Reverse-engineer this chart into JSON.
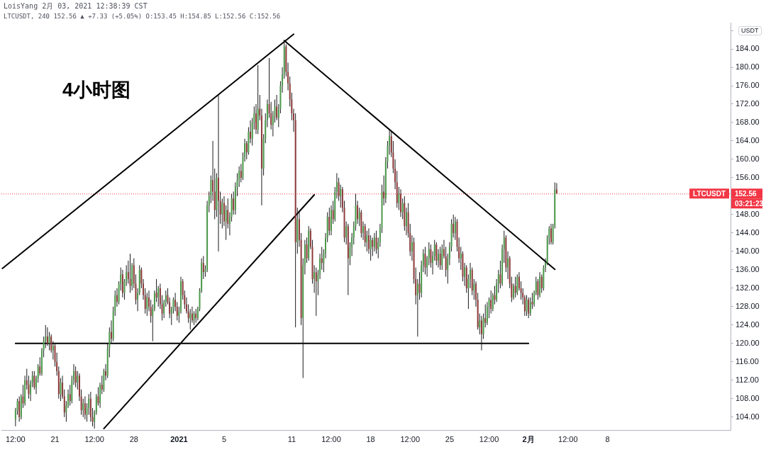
{
  "chart_data": {
    "type": "candlestick",
    "title": "4小时图",
    "subtitle": "LoisYang 2月 03, 2021 12:38:39 CST",
    "ylabel": "USDT",
    "annotations": [
      "LTCUSDT, 240 152.56 ▲ +7.33 (+5.05%) O:153.45 H:154.85 L:152.56 C:152.56",
      "152.56",
      "03:21:23"
    ],
    "x": [
      "2020-12-17T12:00",
      "2020-12-17T16:00",
      "2020-12-17T20:00",
      "2020-12-18T00:00",
      "2020-12-18T04:00",
      "2020-12-18T08:00",
      "2020-12-18T12:00",
      "2020-12-18T16:00",
      "2020-12-18T20:00",
      "2020-12-19T00:00",
      "2020-12-19T04:00",
      "2020-12-19T08:00",
      "2020-12-19T12:00",
      "2020-12-19T16:00",
      "2020-12-19T20:00",
      "2020-12-20T00:00",
      "2020-12-20T04:00",
      "2020-12-20T08:00",
      "2020-12-20T12:00",
      "2020-12-20T16:00",
      "2020-12-20T20:00",
      "2020-12-21T00:00",
      "2020-12-21T04:00",
      "2020-12-21T08:00",
      "2020-12-21T12:00",
      "2020-12-21T16:00",
      "2020-12-21T20:00",
      "2020-12-22T00:00",
      "2020-12-22T04:00",
      "2020-12-22T08:00",
      "2020-12-22T12:00",
      "2020-12-22T16:00",
      "2020-12-22T20:00",
      "2020-12-23T00:00",
      "2020-12-23T04:00",
      "2020-12-23T08:00",
      "2020-12-23T12:00",
      "2020-12-23T16:00",
      "2020-12-23T20:00",
      "2020-12-24T00:00",
      "2020-12-24T04:00",
      "2020-12-24T08:00",
      "2020-12-24T12:00",
      "2020-12-24T16:00",
      "2020-12-24T20:00",
      "2020-12-25T00:00",
      "2020-12-25T04:00",
      "2020-12-25T08:00",
      "2020-12-25T12:00",
      "2020-12-25T16:00",
      "2020-12-25T20:00",
      "2020-12-26T00:00",
      "2020-12-26T04:00",
      "2020-12-26T08:00",
      "2020-12-26T12:00",
      "2020-12-26T16:00",
      "2020-12-26T20:00",
      "2020-12-27T00:00",
      "2020-12-27T04:00",
      "2020-12-27T08:00",
      "2020-12-27T12:00",
      "2020-12-27T16:00",
      "2020-12-27T20:00",
      "2020-12-28T00:00",
      "2020-12-28T04:00",
      "2020-12-28T08:00",
      "2020-12-28T12:00",
      "2020-12-28T16:00",
      "2020-12-28T20:00",
      "2020-12-29T00:00",
      "2020-12-29T04:00",
      "2020-12-29T08:00",
      "2020-12-29T12:00",
      "2020-12-29T16:00",
      "2020-12-29T20:00",
      "2020-12-30T00:00",
      "2020-12-30T04:00",
      "2020-12-30T08:00",
      "2020-12-30T12:00",
      "2020-12-30T16:00",
      "2020-12-30T20:00",
      "2020-12-31T00:00",
      "2020-12-31T04:00",
      "2020-12-31T08:00",
      "2020-12-31T12:00",
      "2020-12-31T16:00",
      "2020-12-31T20:00",
      "2021-01-01T00:00",
      "2021-01-01T04:00",
      "2021-01-01T08:00",
      "2021-01-01T12:00",
      "2021-01-01T16:00",
      "2021-01-01T20:00",
      "2021-01-02T00:00",
      "2021-01-02T04:00",
      "2021-01-02T08:00",
      "2021-01-02T12:00",
      "2021-01-02T16:00",
      "2021-01-02T20:00",
      "2021-01-03T00:00",
      "2021-01-03T04:00",
      "2021-01-03T08:00",
      "2021-01-03T12:00",
      "2021-01-03T16:00",
      "2021-01-03T20:00",
      "2021-01-04T00:00",
      "2021-01-04T04:00",
      "2021-01-04T08:00",
      "2021-01-04T12:00",
      "2021-01-04T16:00",
      "2021-01-04T20:00",
      "2021-01-05T00:00",
      "2021-01-05T04:00",
      "2021-01-05T08:00",
      "2021-01-05T12:00",
      "2021-01-05T16:00",
      "2021-01-05T20:00",
      "2021-01-06T00:00",
      "2021-01-06T04:00",
      "2021-01-06T08:00",
      "2021-01-06T12:00",
      "2021-01-06T16:00",
      "2021-01-06T20:00",
      "2021-01-07T00:00",
      "2021-01-07T04:00",
      "2021-01-07T08:00",
      "2021-01-07T12:00",
      "2021-01-07T16:00",
      "2021-01-07T20:00",
      "2021-01-08T00:00",
      "2021-01-08T04:00",
      "2021-01-08T08:00",
      "2021-01-08T12:00",
      "2021-01-08T16:00",
      "2021-01-08T20:00",
      "2021-01-09T00:00",
      "2021-01-09T04:00",
      "2021-01-09T08:00",
      "2021-01-09T12:00",
      "2021-01-09T16:00",
      "2021-01-09T20:00",
      "2021-01-10T00:00",
      "2021-01-10T04:00",
      "2021-01-10T08:00",
      "2021-01-10T12:00",
      "2021-01-10T16:00",
      "2021-01-10T20:00",
      "2021-01-11T00:00",
      "2021-01-11T04:00",
      "2021-01-11T08:00",
      "2021-01-11T12:00",
      "2021-01-11T16:00",
      "2021-01-11T20:00",
      "2021-01-12T00:00",
      "2021-01-12T04:00",
      "2021-01-12T08:00",
      "2021-01-12T12:00",
      "2021-01-12T16:00",
      "2021-01-12T20:00",
      "2021-01-13T00:00",
      "2021-01-13T04:00",
      "2021-01-13T08:00",
      "2021-01-13T12:00",
      "2021-01-13T16:00",
      "2021-01-13T20:00",
      "2021-01-14T00:00",
      "2021-01-14T04:00",
      "2021-01-14T08:00",
      "2021-01-14T12:00",
      "2021-01-14T16:00",
      "2021-01-14T20:00",
      "2021-01-15T00:00",
      "2021-01-15T04:00",
      "2021-01-15T08:00",
      "2021-01-15T12:00",
      "2021-01-15T16:00",
      "2021-01-15T20:00",
      "2021-01-16T00:00",
      "2021-01-16T04:00",
      "2021-01-16T08:00",
      "2021-01-16T12:00",
      "2021-01-16T16:00",
      "2021-01-16T20:00",
      "2021-01-17T00:00",
      "2021-01-17T04:00",
      "2021-01-17T08:00",
      "2021-01-17T12:00",
      "2021-01-17T16:00",
      "2021-01-17T20:00",
      "2021-01-18T00:00",
      "2021-01-18T04:00",
      "2021-01-18T08:00",
      "2021-01-18T12:00",
      "2021-01-18T16:00",
      "2021-01-18T20:00",
      "2021-01-19T00:00",
      "2021-01-19T04:00",
      "2021-01-19T08:00",
      "2021-01-19T12:00",
      "2021-01-19T16:00",
      "2021-01-19T20:00",
      "2021-01-20T00:00",
      "2021-01-20T04:00",
      "2021-01-20T08:00",
      "2021-01-20T12:00",
      "2021-01-20T16:00",
      "2021-01-20T20:00",
      "2021-01-21T00:00",
      "2021-01-21T04:00",
      "2021-01-21T08:00",
      "2021-01-21T12:00",
      "2021-01-21T16:00",
      "2021-01-21T20:00",
      "2021-01-22T00:00",
      "2021-01-22T04:00",
      "2021-01-22T08:00",
      "2021-01-22T12:00",
      "2021-01-22T16:00",
      "2021-01-22T20:00",
      "2021-01-23T00:00",
      "2021-01-23T04:00",
      "2021-01-23T08:00",
      "2021-01-23T12:00",
      "2021-01-23T16:00",
      "2021-01-23T20:00",
      "2021-01-24T00:00",
      "2021-01-24T04:00",
      "2021-01-24T08:00",
      "2021-01-24T12:00",
      "2021-01-24T16:00",
      "2021-01-24T20:00",
      "2021-01-25T00:00",
      "2021-01-25T04:00",
      "2021-01-25T08:00",
      "2021-01-25T12:00",
      "2021-01-25T16:00",
      "2021-01-25T20:00",
      "2021-01-26T00:00",
      "2021-01-26T04:00",
      "2021-01-26T08:00",
      "2021-01-26T12:00",
      "2021-01-26T16:00",
      "2021-01-26T20:00",
      "2021-01-27T00:00",
      "2021-01-27T04:00",
      "2021-01-27T08:00",
      "2021-01-27T12:00",
      "2021-01-27T16:00",
      "2021-01-27T20:00",
      "2021-01-28T00:00",
      "2021-01-28T04:00",
      "2021-01-28T08:00",
      "2021-01-28T12:00",
      "2021-01-28T16:00",
      "2021-01-28T20:00",
      "2021-01-29T00:00",
      "2021-01-29T04:00",
      "2021-01-29T08:00",
      "2021-01-29T12:00",
      "2021-01-29T16:00",
      "2021-01-29T20:00",
      "2021-01-30T00:00",
      "2021-01-30T04:00",
      "2021-01-30T08:00",
      "2021-01-30T12:00",
      "2021-01-30T16:00",
      "2021-01-30T20:00",
      "2021-01-31T00:00",
      "2021-01-31T04:00",
      "2021-01-31T08:00",
      "2021-01-31T12:00",
      "2021-01-31T16:00",
      "2021-01-31T20:00",
      "2021-02-01T00:00",
      "2021-02-01T04:00",
      "2021-02-01T08:00",
      "2021-02-01T12:00",
      "2021-02-01T16:00",
      "2021-02-01T20:00",
      "2021-02-02T00:00",
      "2021-02-02T04:00",
      "2021-02-02T08:00",
      "2021-02-02T12:00",
      "2021-02-02T16:00",
      "2021-02-02T20:00",
      "2021-02-03T00:00",
      "2021-02-03T04:00",
      "2021-02-03T08:00",
      "2021-02-03T12:00"
    ],
    "ohlc": [
      [
        103.5,
        106,
        102,
        105.5
      ],
      [
        105.5,
        108,
        104.5,
        107.5
      ],
      [
        107.5,
        108.5,
        103,
        104
      ],
      [
        104,
        109,
        103.5,
        108.5
      ],
      [
        108.5,
        111,
        106,
        107
      ],
      [
        107,
        113,
        106.5,
        112
      ],
      [
        112,
        114.5,
        110,
        111
      ],
      [
        111,
        113,
        108,
        109
      ],
      [
        109,
        112,
        107.5,
        111.5
      ],
      [
        111.5,
        114,
        110.5,
        113
      ],
      [
        113,
        114,
        110,
        110.5
      ],
      [
        110.5,
        113,
        109,
        112.5
      ],
      [
        112.5,
        115.5,
        111.5,
        115
      ],
      [
        115,
        117,
        113,
        113.5
      ],
      [
        113.5,
        119,
        113,
        118.5
      ],
      [
        118.5,
        121.5,
        117,
        120.5
      ],
      [
        120.5,
        124,
        119,
        121.5
      ],
      [
        121.5,
        123.5,
        119.5,
        120
      ],
      [
        120,
        122.5,
        118.5,
        121.5
      ],
      [
        121.5,
        122,
        118,
        118.5
      ],
      [
        118.5,
        120.5,
        116.5,
        119.5
      ],
      [
        119.5,
        120,
        115,
        116
      ],
      [
        116,
        118,
        113,
        114
      ],
      [
        114,
        115,
        108,
        109
      ],
      [
        109,
        112.5,
        107.5,
        111.5
      ],
      [
        111.5,
        113,
        108,
        108.5
      ],
      [
        108.5,
        110,
        104,
        105
      ],
      [
        105,
        107.5,
        103,
        106.5
      ],
      [
        106.5,
        110,
        106,
        109
      ],
      [
        109,
        111,
        106.5,
        107.5
      ],
      [
        107.5,
        113,
        107,
        112
      ],
      [
        112,
        115.5,
        111,
        114
      ],
      [
        114,
        115,
        110.5,
        111.5
      ],
      [
        111.5,
        114,
        110,
        113
      ],
      [
        113,
        113.5,
        107.5,
        108.5
      ],
      [
        108.5,
        110,
        104.5,
        105.5
      ],
      [
        105.5,
        108,
        104,
        107
      ],
      [
        107,
        108.5,
        103.5,
        104.5
      ],
      [
        104.5,
        107,
        103,
        106
      ],
      [
        106,
        109,
        104.5,
        108
      ],
      [
        108,
        109.5,
        103,
        104
      ],
      [
        104,
        106,
        102,
        103
      ],
      [
        103,
        105.5,
        101.5,
        105
      ],
      [
        105,
        109,
        104.5,
        108.5
      ],
      [
        108.5,
        110.5,
        106.5,
        107
      ],
      [
        107,
        111.5,
        106,
        111
      ],
      [
        111,
        113,
        109,
        110
      ],
      [
        110,
        114.5,
        109.5,
        114
      ],
      [
        114,
        115.5,
        112,
        113
      ],
      [
        113,
        120,
        112.5,
        119
      ],
      [
        119,
        123.5,
        117,
        122.5
      ],
      [
        122.5,
        125,
        120,
        121
      ],
      [
        121,
        128,
        120.5,
        127
      ],
      [
        127,
        131.5,
        126,
        130.5
      ],
      [
        130.5,
        132,
        128,
        129
      ],
      [
        129,
        133.5,
        128.5,
        133
      ],
      [
        133,
        136.5,
        131.5,
        135
      ],
      [
        135,
        136,
        130,
        131
      ],
      [
        131,
        134,
        129.5,
        133.5
      ],
      [
        133.5,
        137,
        132.5,
        135.5
      ],
      [
        135.5,
        138,
        133,
        134
      ],
      [
        134,
        139.5,
        131,
        132.5
      ],
      [
        132.5,
        137.5,
        131.5,
        137
      ],
      [
        137,
        138.5,
        132,
        133
      ],
      [
        133,
        135,
        128.5,
        129.5
      ],
      [
        129.5,
        132,
        127,
        131
      ],
      [
        131,
        137,
        130.5,
        136
      ],
      [
        136,
        136.5,
        132,
        133
      ],
      [
        133,
        134,
        129.5,
        130.5
      ],
      [
        130.5,
        132,
        126.5,
        127.5
      ],
      [
        127.5,
        131,
        126,
        130
      ],
      [
        130,
        131.5,
        127,
        128
      ],
      [
        128,
        129.5,
        124.5,
        126
      ],
      [
        126,
        128.5,
        120.5,
        127.5
      ],
      [
        127.5,
        131.5,
        127,
        131
      ],
      [
        131,
        134,
        129,
        130
      ],
      [
        130,
        132.5,
        128,
        132
      ],
      [
        132,
        133,
        127.5,
        128.5
      ],
      [
        128.5,
        130.5,
        125,
        126.5
      ],
      [
        126.5,
        129.5,
        125.5,
        129
      ],
      [
        129,
        131.5,
        128,
        130.5
      ],
      [
        130.5,
        132,
        128.5,
        129
      ],
      [
        129,
        130,
        125.5,
        126.5
      ],
      [
        126.5,
        128,
        124,
        127.5
      ],
      [
        127.5,
        130,
        126.5,
        129.5
      ],
      [
        129.5,
        131,
        127,
        128
      ],
      [
        128,
        129,
        125,
        126
      ],
      [
        126,
        128,
        124.5,
        127
      ],
      [
        127,
        134.5,
        126.5,
        133.5
      ],
      [
        133.5,
        134,
        129.5,
        130.5
      ],
      [
        130.5,
        131.5,
        127.5,
        128.5
      ],
      [
        128.5,
        130,
        126.5,
        127
      ],
      [
        127,
        128.5,
        124.5,
        125.5
      ],
      [
        125.5,
        127.5,
        123,
        126.5
      ],
      [
        126.5,
        128,
        124.5,
        125
      ],
      [
        125,
        127,
        124,
        126.5
      ],
      [
        126.5,
        127.5,
        124.5,
        125.5
      ],
      [
        125.5,
        128,
        125,
        127.5
      ],
      [
        127.5,
        132,
        127,
        131.5
      ],
      [
        131.5,
        138.5,
        131,
        137.5
      ],
      [
        137.5,
        139,
        134,
        135.5
      ],
      [
        135.5,
        137,
        134.5,
        136
      ],
      [
        136,
        151,
        135.5,
        150
      ],
      [
        150,
        153,
        148.5,
        152
      ],
      [
        152,
        156.5,
        150.5,
        155.5
      ],
      [
        155.5,
        164,
        151,
        153
      ],
      [
        153,
        158,
        147,
        149
      ],
      [
        149,
        157,
        147.5,
        156
      ],
      [
        156,
        174,
        140,
        151
      ],
      [
        151,
        153,
        146,
        148
      ],
      [
        148,
        151.5,
        145,
        150.5
      ],
      [
        150.5,
        152,
        145.5,
        146.5
      ],
      [
        146.5,
        150,
        142.5,
        149
      ],
      [
        149,
        151.5,
        145,
        146
      ],
      [
        146,
        148.5,
        143.5,
        147.5
      ],
      [
        147.5,
        152.5,
        146.5,
        151.5
      ],
      [
        151.5,
        153,
        148,
        149
      ],
      [
        149,
        155,
        148,
        154
      ],
      [
        154,
        157,
        152,
        155.5
      ],
      [
        155.5,
        158.5,
        154,
        157.5
      ],
      [
        157.5,
        159,
        155,
        156
      ],
      [
        156,
        161.5,
        155.5,
        160.5
      ],
      [
        160.5,
        164.5,
        159.5,
        163.5
      ],
      [
        163.5,
        164,
        160,
        161.5
      ],
      [
        161.5,
        167,
        161,
        166
      ],
      [
        166,
        168.5,
        163.5,
        164.5
      ],
      [
        164.5,
        169,
        163,
        168
      ],
      [
        168,
        171.5,
        166.5,
        170
      ],
      [
        170,
        172,
        165.5,
        166.5
      ],
      [
        166.5,
        180.5,
        165.5,
        171
      ],
      [
        171,
        174,
        168.5,
        169.5
      ],
      [
        169.5,
        171,
        150,
        158
      ],
      [
        158,
        165.5,
        156.5,
        164.5
      ],
      [
        164.5,
        170,
        163.5,
        168.5
      ],
      [
        168.5,
        173,
        167,
        172
      ],
      [
        172,
        182,
        169,
        170
      ],
      [
        170,
        172.5,
        166.5,
        167.5
      ],
      [
        167.5,
        170.5,
        165,
        169.5
      ],
      [
        169.5,
        173,
        168,
        171.5
      ],
      [
        171.5,
        174,
        168.5,
        169
      ],
      [
        169,
        172,
        167,
        171
      ],
      [
        171,
        177,
        170,
        176
      ],
      [
        176,
        180,
        174.5,
        178.5
      ],
      [
        178.5,
        185.5,
        177.5,
        184.5
      ],
      [
        184.5,
        185,
        178,
        179
      ],
      [
        179,
        181,
        175,
        176.5
      ],
      [
        176.5,
        178,
        171.5,
        173
      ],
      [
        173,
        174.5,
        168.5,
        170
      ],
      [
        170,
        171,
        166,
        168.5
      ],
      [
        168.5,
        170,
        123.5,
        142
      ],
      [
        142,
        149.5,
        139.5,
        147
      ],
      [
        147,
        148.5,
        141,
        142.5
      ],
      [
        142.5,
        144,
        124,
        125.5
      ],
      [
        125.5,
        138.5,
        112.5,
        137
      ],
      [
        137,
        142.5,
        135,
        141.5
      ],
      [
        141.5,
        143,
        137.5,
        138.5
      ],
      [
        138.5,
        145.5,
        138,
        144.5
      ],
      [
        144.5,
        145,
        140.5,
        141
      ],
      [
        141,
        142.5,
        133,
        134
      ],
      [
        134,
        137,
        131,
        135.5
      ],
      [
        135.5,
        136.5,
        126,
        133.5
      ],
      [
        133.5,
        136,
        130.5,
        135
      ],
      [
        135,
        139.5,
        134,
        138.5
      ],
      [
        138.5,
        141,
        136,
        137.5
      ],
      [
        137.5,
        140.5,
        135.5,
        139.5
      ],
      [
        139.5,
        144,
        138.5,
        143
      ],
      [
        143,
        148.5,
        142,
        147.5
      ],
      [
        147.5,
        149.5,
        143.5,
        144.5
      ],
      [
        144.5,
        150,
        143.5,
        149
      ],
      [
        149,
        151,
        146,
        147
      ],
      [
        147,
        154,
        146.5,
        153
      ],
      [
        153,
        157,
        151.5,
        155
      ],
      [
        155,
        156,
        151,
        152
      ],
      [
        152,
        154.5,
        149.5,
        153.5
      ],
      [
        153.5,
        154,
        148.5,
        149.5
      ],
      [
        149.5,
        151,
        142,
        143
      ],
      [
        143,
        146.5,
        141.5,
        145.5
      ],
      [
        145.5,
        146,
        130.5,
        138.5
      ],
      [
        138.5,
        142,
        137,
        141
      ],
      [
        141,
        144,
        139,
        143
      ],
      [
        143,
        146.5,
        141.5,
        145.5
      ],
      [
        145.5,
        152.5,
        144.5,
        150
      ],
      [
        150,
        151,
        146,
        147
      ],
      [
        147,
        149.5,
        145.5,
        148.5
      ],
      [
        148.5,
        149,
        143,
        144
      ],
      [
        144,
        146.5,
        142.5,
        145.5
      ],
      [
        145.5,
        146,
        141,
        142
      ],
      [
        142,
        144.5,
        140,
        143.5
      ],
      [
        143.5,
        145,
        139.5,
        140.5
      ],
      [
        140.5,
        143.5,
        138,
        142.5
      ],
      [
        142.5,
        143,
        139,
        141
      ],
      [
        141,
        144,
        140,
        143
      ],
      [
        143,
        144.5,
        139.5,
        140.5
      ],
      [
        140.5,
        143,
        138.5,
        142
      ],
      [
        142,
        146,
        141,
        145
      ],
      [
        145,
        154.5,
        144,
        153
      ],
      [
        153,
        156.5,
        150,
        151.5
      ],
      [
        151.5,
        160.5,
        150.5,
        159.5
      ],
      [
        159.5,
        164,
        158,
        163
      ],
      [
        163,
        166.5,
        161,
        165
      ],
      [
        165,
        166,
        160.5,
        161.5
      ],
      [
        161.5,
        164,
        157,
        158
      ],
      [
        158,
        160,
        153.5,
        155
      ],
      [
        155,
        157.5,
        149.5,
        150.5
      ],
      [
        150.5,
        154,
        149,
        152.5
      ],
      [
        152.5,
        153.5,
        147.5,
        148.5
      ],
      [
        148.5,
        151.5,
        147,
        150.5
      ],
      [
        150.5,
        152,
        144.5,
        145.5
      ],
      [
        145.5,
        149.5,
        143.5,
        148.5
      ],
      [
        148.5,
        150.5,
        143,
        144
      ],
      [
        144,
        146,
        139,
        140
      ],
      [
        140,
        143.5,
        138,
        142
      ],
      [
        142,
        143,
        133,
        134
      ],
      [
        134,
        136.5,
        128.5,
        130.5
      ],
      [
        130.5,
        134,
        121.5,
        133
      ],
      [
        133,
        135.5,
        129.5,
        131
      ],
      [
        131,
        138,
        130,
        137
      ],
      [
        137,
        140.5,
        135.5,
        139.5
      ],
      [
        139.5,
        141,
        135,
        136.5
      ],
      [
        136.5,
        139,
        134.5,
        138.5
      ],
      [
        138.5,
        142,
        137,
        140.5
      ],
      [
        140.5,
        141.5,
        136.5,
        137.5
      ],
      [
        137.5,
        140,
        135,
        139
      ],
      [
        139,
        142.5,
        138,
        141.5
      ],
      [
        141.5,
        142,
        137,
        138
      ],
      [
        138,
        140.5,
        136.5,
        139.5
      ],
      [
        139.5,
        141,
        136,
        137
      ],
      [
        137,
        141.5,
        136,
        140.5
      ],
      [
        140.5,
        142.5,
        138.5,
        139
      ],
      [
        139,
        141,
        134.5,
        136
      ],
      [
        136,
        139.5,
        133,
        138.5
      ],
      [
        138.5,
        142,
        137,
        141
      ],
      [
        141,
        147,
        140,
        146
      ],
      [
        146,
        148,
        143,
        144
      ],
      [
        144,
        147.5,
        142.5,
        146.5
      ],
      [
        146.5,
        147,
        140,
        141
      ],
      [
        141,
        143,
        137.5,
        138.5
      ],
      [
        138.5,
        141,
        136,
        139.5
      ],
      [
        139.5,
        140,
        133.5,
        134.5
      ],
      [
        134.5,
        137.5,
        132.5,
        136.5
      ],
      [
        136.5,
        137,
        131,
        132
      ],
      [
        132,
        135,
        127.5,
        134
      ],
      [
        134,
        137.5,
        132,
        136
      ],
      [
        136,
        136.5,
        130.5,
        131.5
      ],
      [
        131.5,
        134,
        129.5,
        133
      ],
      [
        133,
        133.5,
        128,
        129.5
      ],
      [
        129.5,
        131,
        123,
        123.5
      ],
      [
        123.5,
        126.5,
        122,
        125
      ],
      [
        125,
        126,
        118.5,
        122
      ],
      [
        122,
        126.5,
        121,
        125.5
      ],
      [
        125.5,
        128.5,
        123.5,
        124.5
      ],
      [
        124.5,
        129,
        124,
        128
      ],
      [
        128,
        130,
        125.5,
        129.5
      ],
      [
        129.5,
        131.5,
        126.5,
        127.5
      ],
      [
        127.5,
        131,
        127,
        130.5
      ],
      [
        130.5,
        132.5,
        128.5,
        129.5
      ],
      [
        129.5,
        134,
        129,
        133
      ],
      [
        133,
        136,
        131,
        135
      ],
      [
        135,
        138,
        132,
        133
      ],
      [
        133,
        141.5,
        132.5,
        140.5
      ],
      [
        140.5,
        144.5,
        137.5,
        143
      ],
      [
        143,
        143.5,
        135.5,
        136.5
      ],
      [
        136.5,
        140,
        134,
        138.5
      ],
      [
        138.5,
        139,
        132,
        133
      ],
      [
        133,
        134.5,
        129,
        130
      ],
      [
        130,
        133,
        129.5,
        132.5
      ],
      [
        132.5,
        134.5,
        130,
        131
      ],
      [
        131,
        135,
        130.5,
        134.5
      ],
      [
        134.5,
        135.5,
        131.5,
        132
      ],
      [
        132,
        133.5,
        129.5,
        131
      ],
      [
        131,
        132,
        128.5,
        130
      ],
      [
        130,
        130.5,
        126,
        127
      ],
      [
        127,
        130.5,
        126,
        129.5
      ],
      [
        129.5,
        130,
        125.5,
        126.5
      ],
      [
        126.5,
        130,
        126,
        129
      ],
      [
        129,
        131,
        127.5,
        128.5
      ],
      [
        128.5,
        131.5,
        128,
        131
      ],
      [
        131,
        134.5,
        130.5,
        133.5
      ],
      [
        133.5,
        134,
        129.5,
        130.5
      ],
      [
        130.5,
        135.5,
        130,
        134.5
      ],
      [
        134.5,
        135,
        131,
        132
      ],
      [
        132,
        137,
        131.5,
        136.5
      ],
      [
        136.5,
        138.5,
        135.5,
        137.5
      ],
      [
        137.5,
        143.5,
        137,
        143
      ],
      [
        143,
        145.5,
        141.5,
        145
      ],
      [
        145,
        146,
        141.5,
        142
      ],
      [
        142,
        146,
        141.5,
        145.5
      ],
      [
        145.5,
        155,
        145,
        153.45
      ],
      [
        153.45,
        154.85,
        152.56,
        152.56
      ]
    ],
    "colors": [
      "#4c9a4c",
      "#4c9a4c",
      "#8e3a3a",
      "#4c9a4c",
      "#8e3a3a",
      "#4c9a4c",
      "#8e3a3a",
      "#8e3a3a",
      "#4c9a4c",
      "#4c9a4c",
      "#8e3a3a",
      "#4c9a4c",
      "#4c9a4c",
      "#8e3a3a",
      "#4c9a4c",
      "#4c9a4c",
      "#4c9a4c",
      "#8e3a3a",
      "#4c9a4c",
      "#8e3a3a",
      "#4c9a4c",
      "#8e3a3a",
      "#8e3a3a",
      "#8e3a3a",
      "#4c9a4c",
      "#8e3a3a",
      "#8e3a3a",
      "#4c9a4c",
      "#4c9a4c",
      "#8e3a3a",
      "#4c9a4c",
      "#4c9a4c",
      "#8e3a3a",
      "#4c9a4c",
      "#8e3a3a",
      "#8e3a3a",
      "#4c9a4c",
      "#8e3a3a",
      "#4c9a4c",
      "#4c9a4c",
      "#8e3a3a",
      "#8e3a3a",
      "#4c9a4c",
      "#4c9a4c",
      "#8e3a3a",
      "#4c9a4c",
      "#8e3a3a",
      "#4c9a4c",
      "#8e3a3a",
      "#4c9a4c",
      "#4c9a4c",
      "#8e3a3a",
      "#4c9a4c",
      "#4c9a4c",
      "#8e3a3a",
      "#4c9a4c",
      "#4c9a4c",
      "#8e3a3a",
      "#4c9a4c",
      "#4c9a4c",
      "#8e3a3a",
      "#8e3a3a",
      "#4c9a4c",
      "#8e3a3a",
      "#8e3a3a",
      "#4c9a4c",
      "#4c9a4c",
      "#8e3a3a",
      "#8e3a3a",
      "#8e3a3a",
      "#4c9a4c",
      "#8e3a3a",
      "#8e3a3a",
      "#4c9a4c",
      "#4c9a4c",
      "#8e3a3a",
      "#4c9a4c",
      "#8e3a3a",
      "#8e3a3a",
      "#4c9a4c",
      "#4c9a4c",
      "#8e3a3a",
      "#8e3a3a",
      "#4c9a4c",
      "#4c9a4c",
      "#8e3a3a",
      "#8e3a3a",
      "#4c9a4c",
      "#4c9a4c",
      "#8e3a3a",
      "#8e3a3a",
      "#8e3a3a",
      "#8e3a3a",
      "#4c9a4c",
      "#8e3a3a",
      "#4c9a4c",
      "#8e3a3a",
      "#4c9a4c",
      "#4c9a4c",
      "#4c9a4c",
      "#8e3a3a",
      "#4c9a4c",
      "#4c9a4c",
      "#4c9a4c",
      "#4c9a4c",
      "#8e3a3a",
      "#8e3a3a",
      "#4c9a4c",
      "#8e3a3a",
      "#8e3a3a",
      "#4c9a4c",
      "#8e3a3a",
      "#4c9a4c",
      "#8e3a3a",
      "#4c9a4c",
      "#4c9a4c",
      "#8e3a3a",
      "#4c9a4c",
      "#4c9a4c",
      "#4c9a4c",
      "#8e3a3a",
      "#4c9a4c",
      "#4c9a4c",
      "#8e3a3a",
      "#4c9a4c",
      "#8e3a3a",
      "#4c9a4c",
      "#4c9a4c",
      "#8e3a3a",
      "#4c9a4c",
      "#8e3a3a",
      "#8e3a3a",
      "#4c9a4c",
      "#4c9a4c",
      "#4c9a4c",
      "#8e3a3a",
      "#8e3a3a",
      "#4c9a4c",
      "#4c9a4c",
      "#8e3a3a",
      "#4c9a4c",
      "#4c9a4c",
      "#4c9a4c",
      "#4c9a4c",
      "#8e3a3a",
      "#8e3a3a",
      "#8e3a3a",
      "#8e3a3a",
      "#8e3a3a",
      "#8e3a3a",
      "#4c9a4c",
      "#8e3a3a",
      "#8e3a3a",
      "#4c9a4c",
      "#4c9a4c",
      "#8e3a3a",
      "#4c9a4c",
      "#8e3a3a",
      "#8e3a3a",
      "#4c9a4c",
      "#8e3a3a",
      "#4c9a4c",
      "#4c9a4c",
      "#8e3a3a",
      "#4c9a4c",
      "#4c9a4c",
      "#4c9a4c",
      "#8e3a3a",
      "#4c9a4c",
      "#8e3a3a",
      "#4c9a4c",
      "#4c9a4c",
      "#8e3a3a",
      "#4c9a4c",
      "#8e3a3a",
      "#8e3a3a",
      "#4c9a4c",
      "#8e3a3a",
      "#4c9a4c",
      "#4c9a4c",
      "#4c9a4c",
      "#4c9a4c",
      "#8e3a3a",
      "#4c9a4c",
      "#8e3a3a",
      "#4c9a4c",
      "#8e3a3a",
      "#4c9a4c",
      "#8e3a3a",
      "#4c9a4c",
      "#8e3a3a",
      "#4c9a4c",
      "#8e3a3a",
      "#4c9a4c",
      "#4c9a4c",
      "#4c9a4c",
      "#8e3a3a",
      "#4c9a4c",
      "#4c9a4c",
      "#4c9a4c",
      "#8e3a3a",
      "#8e3a3a",
      "#8e3a3a",
      "#8e3a3a",
      "#4c9a4c",
      "#8e3a3a",
      "#4c9a4c",
      "#8e3a3a",
      "#4c9a4c",
      "#8e3a3a",
      "#8e3a3a",
      "#4c9a4c",
      "#8e3a3a",
      "#8e3a3a",
      "#4c9a4c",
      "#8e3a3a",
      "#4c9a4c",
      "#4c9a4c",
      "#8e3a3a",
      "#4c9a4c",
      "#4c9a4c",
      "#8e3a3a",
      "#4c9a4c",
      "#4c9a4c",
      "#8e3a3a",
      "#4c9a4c",
      "#8e3a3a",
      "#4c9a4c",
      "#8e3a3a",
      "#8e3a3a",
      "#4c9a4c",
      "#4c9a4c",
      "#4c9a4c",
      "#8e3a3a",
      "#4c9a4c",
      "#8e3a3a",
      "#8e3a3a",
      "#4c9a4c",
      "#8e3a3a",
      "#4c9a4c",
      "#8e3a3a",
      "#4c9a4c",
      "#4c9a4c",
      "#8e3a3a",
      "#4c9a4c",
      "#8e3a3a",
      "#8e3a3a",
      "#4c9a4c",
      "#8e3a3a",
      "#4c9a4c",
      "#8e3a3a",
      "#4c9a4c",
      "#4c9a4c",
      "#8e3a3a",
      "#4c9a4c",
      "#8e3a3a",
      "#4c9a4c",
      "#4c9a4c",
      "#8e3a3a",
      "#4c9a4c",
      "#4c9a4c",
      "#8e3a3a",
      "#4c9a4c",
      "#8e3a3a",
      "#8e3a3a",
      "#4c9a4c",
      "#8e3a3a",
      "#4c9a4c",
      "#8e3a3a",
      "#8e3a3a",
      "#8e3a3a",
      "#8e3a3a",
      "#4c9a4c",
      "#8e3a3a",
      "#4c9a4c",
      "#8e3a3a",
      "#4c9a4c",
      "#4c9a4c",
      "#8e3a3a",
      "#4c9a4c",
      "#8e3a3a",
      "#4c9a4c",
      "#4c9a4c",
      "#4c9a4c",
      "#4c9a4c",
      "#8e3a3a",
      "#4c9a4c",
      "#4c9a4c",
      "#8e3a3a"
    ],
    "series": [
      {
        "type": "line",
        "x": [
          "2020-12-16T08:00",
          "2021-01-11T04:00"
        ],
        "values": [
          136.3,
          187.2
        ],
        "color": "#000000"
      },
      {
        "type": "line",
        "x": [
          "2020-12-25T08:00",
          "2021-01-13T00:00"
        ],
        "values": [
          101.5,
          152.3
        ],
        "color": "#000000"
      },
      {
        "type": "line",
        "x": [
          "2021-01-10T08:00",
          "2021-02-03T08:00"
        ],
        "values": [
          185.8,
          136.1
        ],
        "color": "#000000"
      },
      {
        "type": "line",
        "x": [
          "2020-12-17T12:00",
          "2021-02-01T00:00"
        ],
        "values": [
          120,
          120
        ],
        "color": "#000000"
      }
    ],
    "xlim": [
      "2020-12-16T06:00",
      "2021-02-18T22:00"
    ],
    "xticks": [
      {
        "value": "2020-12-17T12:00",
        "label": "12:00"
      },
      {
        "value": "2020-12-21",
        "label": "21"
      },
      {
        "value": "2020-12-24T12:00",
        "label": "12:00"
      },
      {
        "value": "2020-12-28",
        "label": "28"
      },
      {
        "value": "2021-01-01",
        "label": "2021"
      },
      {
        "value": "2021-01-05",
        "label": "5"
      },
      {
        "value": "2021-01-11",
        "label": "11"
      },
      {
        "value": "2021-01-14T12:00",
        "label": "12:00"
      },
      {
        "value": "2021-01-18",
        "label": "18"
      },
      {
        "value": "2021-01-21T12:00",
        "label": "12:00"
      },
      {
        "value": "2021-01-25",
        "label": "25"
      },
      {
        "value": "2021-01-28T12:00",
        "label": "12:00"
      },
      {
        "value": "2021-02-01",
        "label": "2月"
      },
      {
        "value": "2021-02-04T12:00",
        "label": "12:00"
      },
      {
        "value": "2021-02-08",
        "label": "8"
      }
    ],
    "ylim": [
      101.2,
      189.7
    ],
    "yticks": [
      {
        "value": 104,
        "label": "104.00"
      },
      {
        "value": 108,
        "label": "108.00"
      },
      {
        "value": 112,
        "label": "112.00"
      },
      {
        "value": 116,
        "label": "116.00"
      },
      {
        "value": 120,
        "label": "120.00"
      },
      {
        "value": 124,
        "label": "124.00"
      },
      {
        "value": 128,
        "label": "128.00"
      },
      {
        "value": 132,
        "label": "132.00"
      },
      {
        "value": 136,
        "label": "136.00"
      },
      {
        "value": 140,
        "label": "140.00"
      },
      {
        "value": 144,
        "label": "144.00"
      },
      {
        "value": 148,
        "label": "148.00"
      },
      {
        "value": 156,
        "label": "156.00"
      },
      {
        "value": 160,
        "label": "160.00"
      },
      {
        "value": 164,
        "label": "164.00"
      },
      {
        "value": 168,
        "label": "168.00"
      },
      {
        "value": 172,
        "label": "172.00"
      },
      {
        "value": 176,
        "label": "176.00"
      },
      {
        "value": 180,
        "label": "180.00"
      },
      {
        "value": 184,
        "label": "184.00"
      },
      {
        "value": 188,
        "label": null
      }
    ],
    "ref_lines": [
      {
        "axis": "y",
        "value": 152.56,
        "label": "LTCUSDT",
        "color": "#f23645",
        "line_style": "dotted"
      }
    ],
    "marker": "none"
  }
}
